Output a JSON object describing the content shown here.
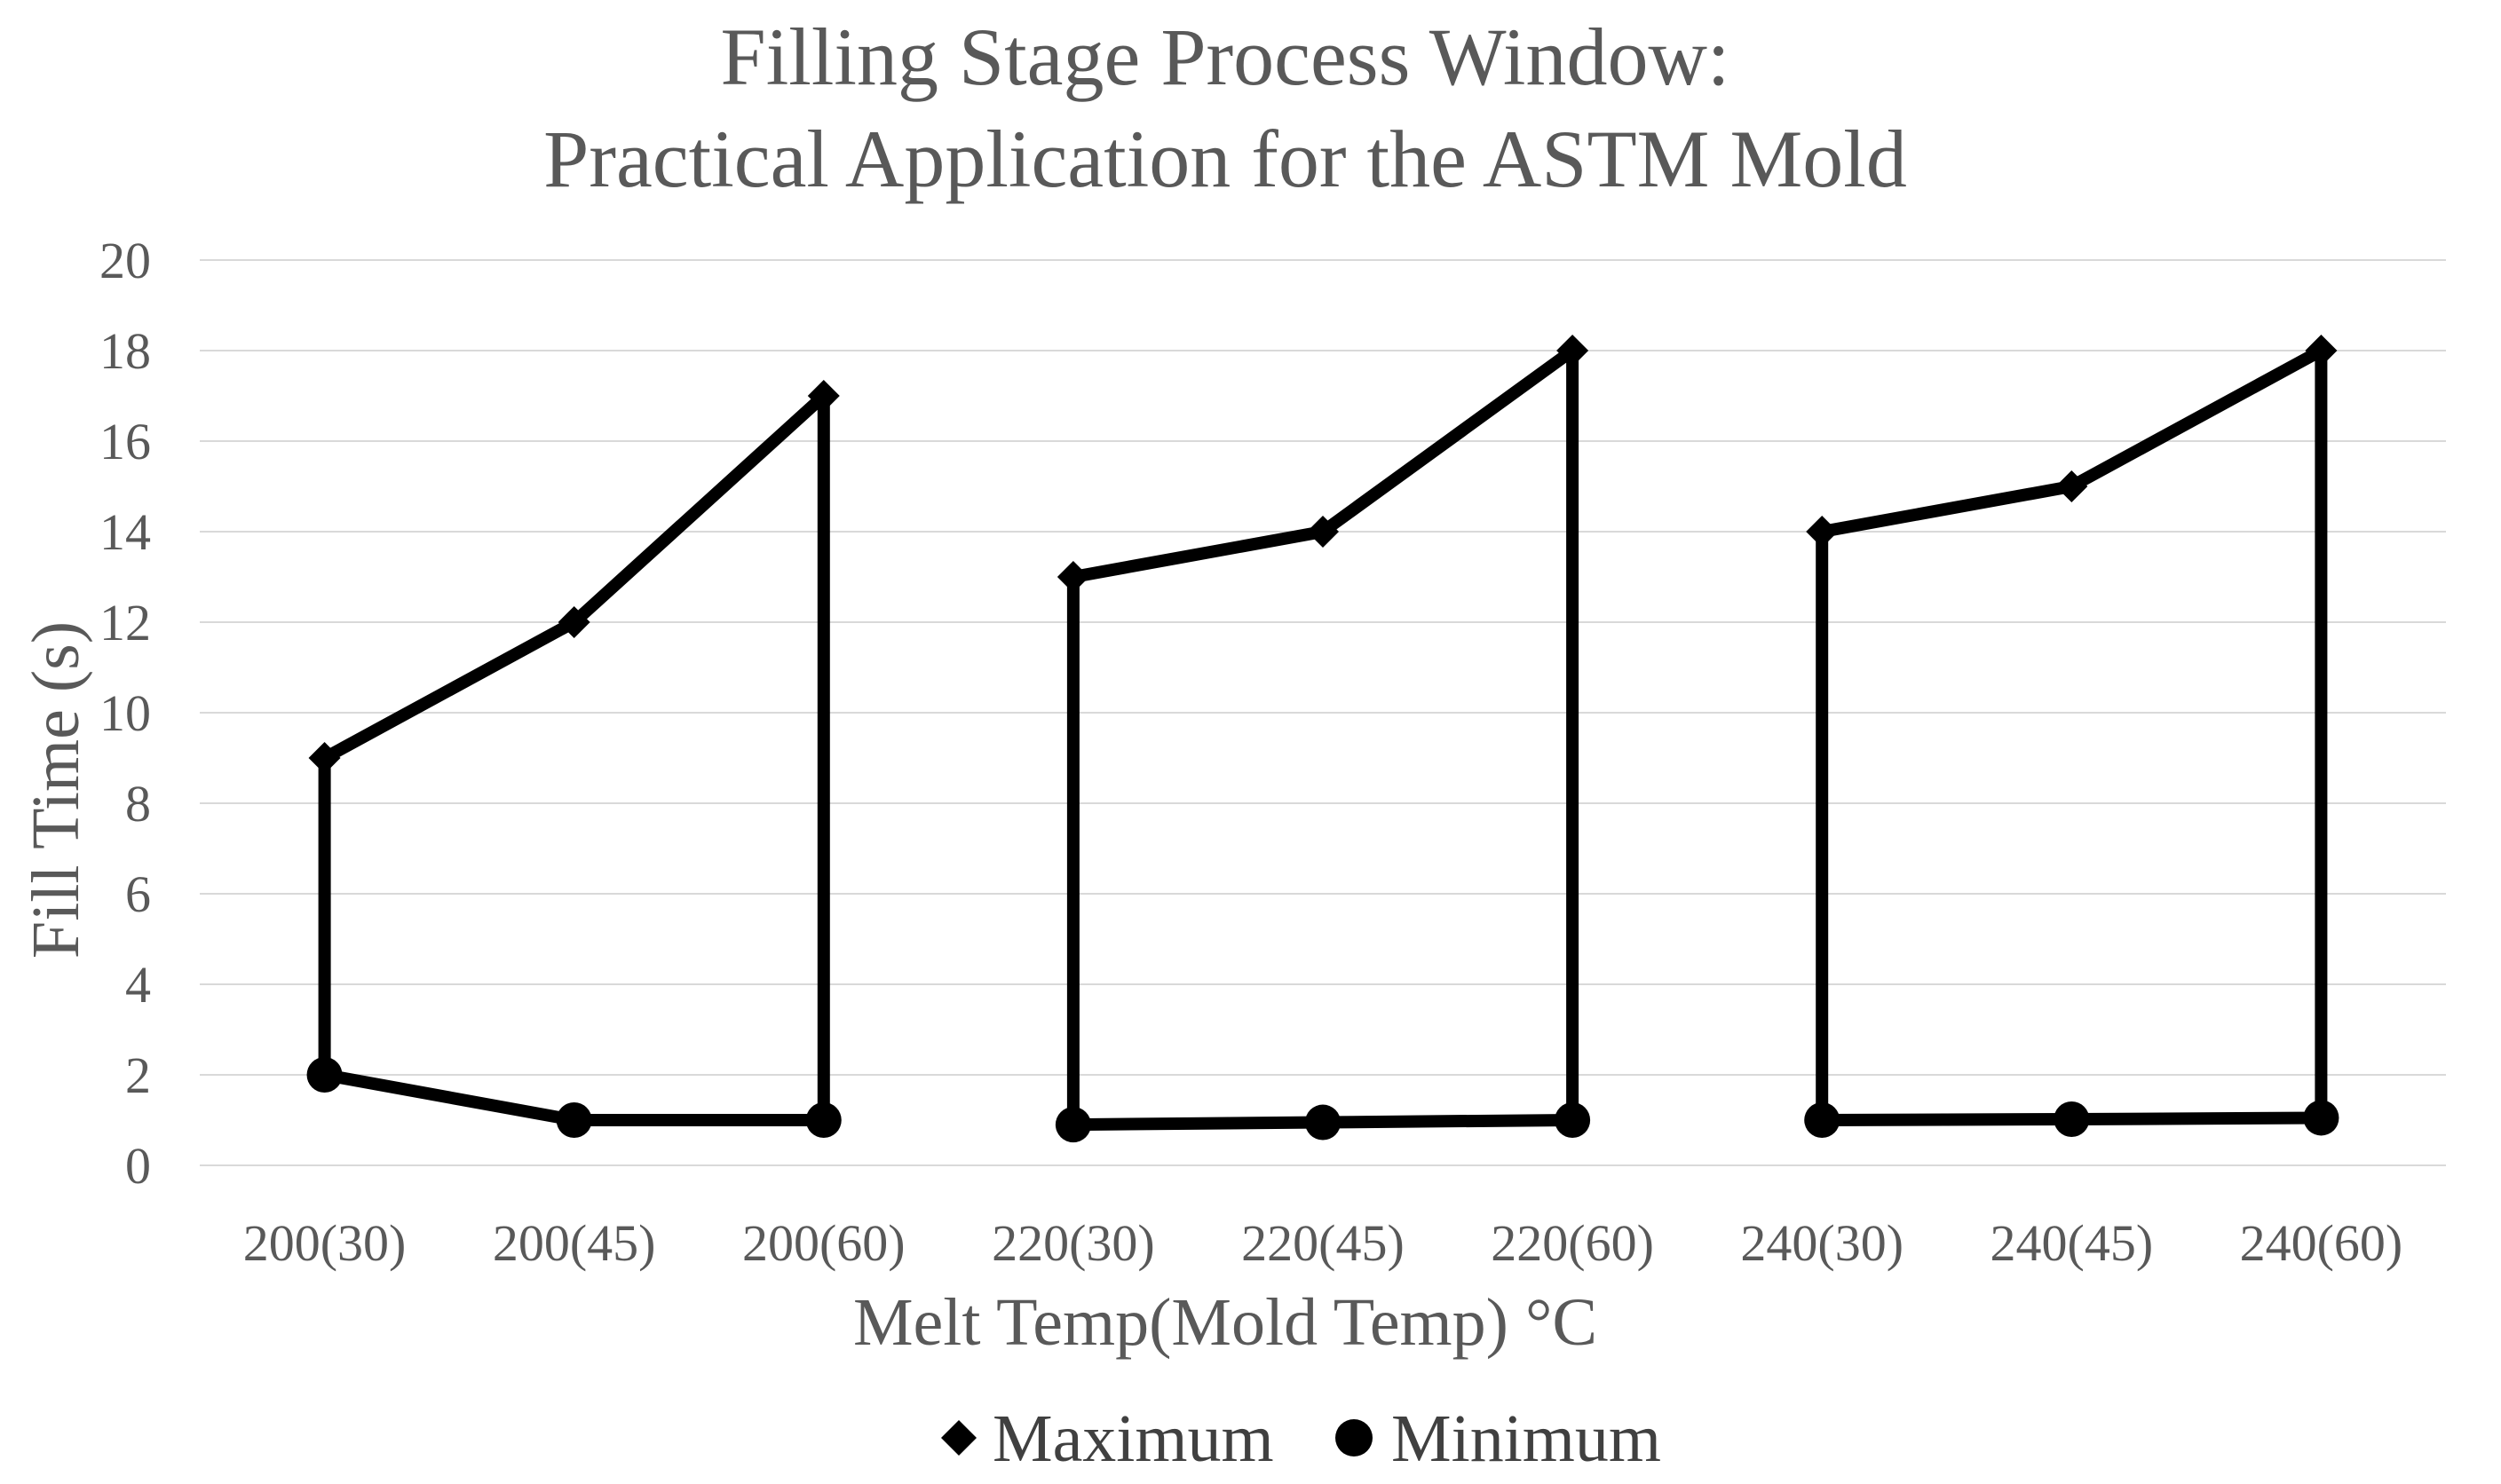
{
  "chart_data": {
    "type": "line",
    "title": [
      "Filling Stage Process Window:",
      "Practical Application for the ASTM Mold"
    ],
    "xlabel": "Melt Temp(Mold Temp) °C",
    "ylabel": "Fill Time (s)",
    "ylim": [
      0,
      20
    ],
    "yticks": [
      0,
      2,
      4,
      6,
      8,
      10,
      12,
      14,
      16,
      18,
      20
    ],
    "grid": true,
    "legend_position": "bottom",
    "categories": [
      "200(30)",
      "200(45)",
      "200(60)",
      "220(30)",
      "220(45)",
      "220(60)",
      "240(30)",
      "240(45)",
      "240(60)"
    ],
    "series": [
      {
        "name": "Maximum",
        "marker": "diamond",
        "values": [
          9,
          12,
          17,
          13,
          14,
          18,
          14,
          15,
          18
        ]
      },
      {
        "name": "Minimum",
        "marker": "circle",
        "values": [
          2,
          1,
          1,
          0.9,
          0.95,
          1,
          1,
          1.02,
          1.05
        ]
      }
    ],
    "groups": [
      [
        0,
        1,
        2
      ],
      [
        3,
        4,
        5
      ],
      [
        6,
        7,
        8
      ]
    ],
    "colors": {
      "series": "#000000",
      "grid": "#d9d9d9",
      "text": "#595959"
    }
  }
}
